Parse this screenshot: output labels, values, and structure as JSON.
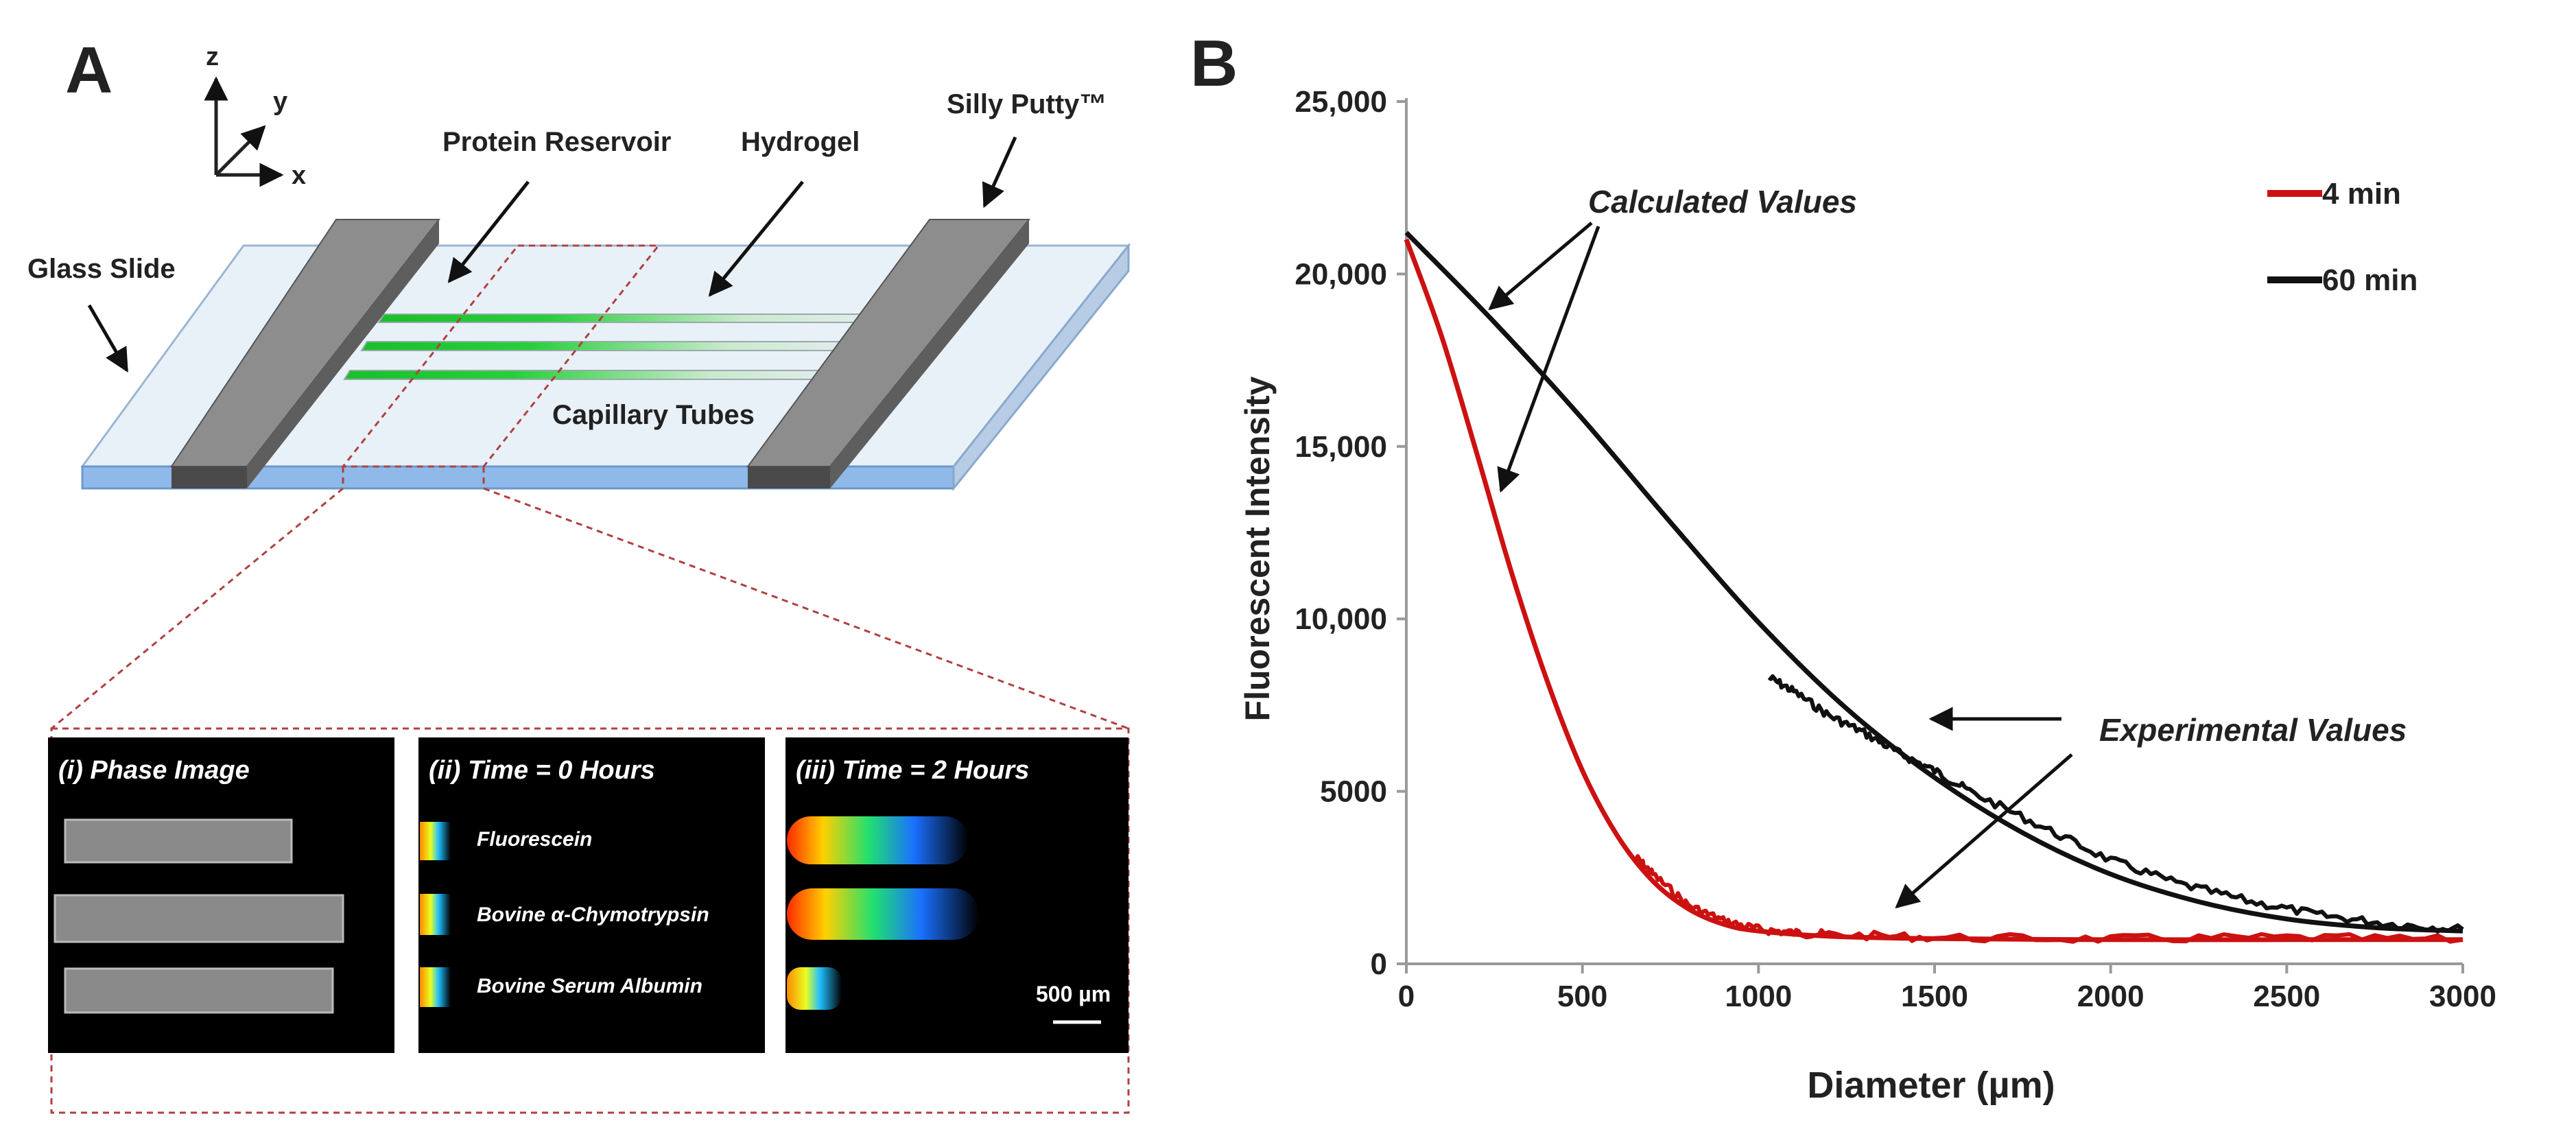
{
  "panel_a": {
    "letter": "A",
    "axes": {
      "z": "z",
      "y": "y",
      "x": "x"
    },
    "labels": {
      "glass_slide": "Glass Slide",
      "protein_reservoir": "Protein Reservoir",
      "hydrogel": "Hydrogel",
      "silly_putty": "Silly Putty™",
      "capillary_tubes": "Capillary Tubes"
    },
    "insets": [
      {
        "title": "(i) Phase Image"
      },
      {
        "title": "(ii) Time = 0 Hours",
        "rows": [
          "Fluorescein",
          "Bovine α-Chymotrypsin",
          "Bovine Serum Albumin"
        ]
      },
      {
        "title": "(iii) Time = 2 Hours",
        "scale_bar": "500 µm"
      }
    ],
    "colors": {
      "glass": "#cfe0f2",
      "glass_edge": "#7fa8d8",
      "putty": "#6f6f6f",
      "tube": "#22bb33",
      "dashed": "#b04040"
    }
  },
  "chart_data": {
    "type": "line",
    "panel_letter": "B",
    "title": "",
    "xlabel": "Diameter (µm)",
    "ylabel": "Fluorescent Intensity",
    "xlim": [
      0,
      3000
    ],
    "ylim": [
      0,
      25000
    ],
    "xticks": [
      0,
      500,
      1000,
      1500,
      2000,
      2500,
      3000
    ],
    "xtick_labels": [
      "0",
      "500",
      "1000",
      "1500",
      "2000",
      "2500",
      "3000"
    ],
    "yticks": [
      0,
      5000,
      10000,
      15000,
      20000,
      25000
    ],
    "ytick_labels": [
      "0",
      "5000",
      "10,000",
      "15,000",
      "20,000",
      "25,000"
    ],
    "legend_position": "top-right",
    "series": [
      {
        "name": "4 min",
        "color": "#cc1111",
        "kind": "calculated",
        "x": [
          0,
          100,
          200,
          300,
          400,
          500,
          600,
          700,
          800,
          900,
          1000,
          1200,
          1500,
          2000,
          2500,
          3000
        ],
        "y": [
          21000,
          18200,
          14800,
          11300,
          8200,
          5600,
          3700,
          2400,
          1600,
          1150,
          950,
          800,
          730,
          700,
          700,
          700
        ]
      },
      {
        "name": "4 min",
        "color": "#cc1111",
        "kind": "experimental",
        "x": [
          650,
          700,
          800,
          900,
          1000,
          1100,
          1200,
          1500,
          2000,
          2500,
          3000
        ],
        "y": [
          3100,
          2600,
          1700,
          1250,
          1000,
          900,
          850,
          760,
          720,
          760,
          700
        ]
      },
      {
        "name": "60 min",
        "color": "#111111",
        "kind": "calculated",
        "x": [
          0,
          250,
          500,
          750,
          1000,
          1250,
          1500,
          1750,
          2000,
          2250,
          2500,
          2750,
          3000
        ],
        "y": [
          21200,
          18600,
          15800,
          12800,
          9900,
          7400,
          5400,
          3800,
          2600,
          1800,
          1300,
          1050,
          950
        ]
      },
      {
        "name": "60 min",
        "color": "#111111",
        "kind": "experimental",
        "x": [
          1030,
          1100,
          1200,
          1300,
          1400,
          1500,
          1600,
          1800,
          2000,
          2200,
          2400,
          2600,
          2800,
          3000
        ],
        "y": [
          8300,
          7900,
          7200,
          6700,
          6100,
          5600,
          5000,
          4000,
          3000,
          2300,
          1800,
          1400,
          1150,
          1000
        ]
      }
    ],
    "annotations": {
      "calculated": "Calculated Values",
      "experimental": "Experimental Values"
    }
  }
}
